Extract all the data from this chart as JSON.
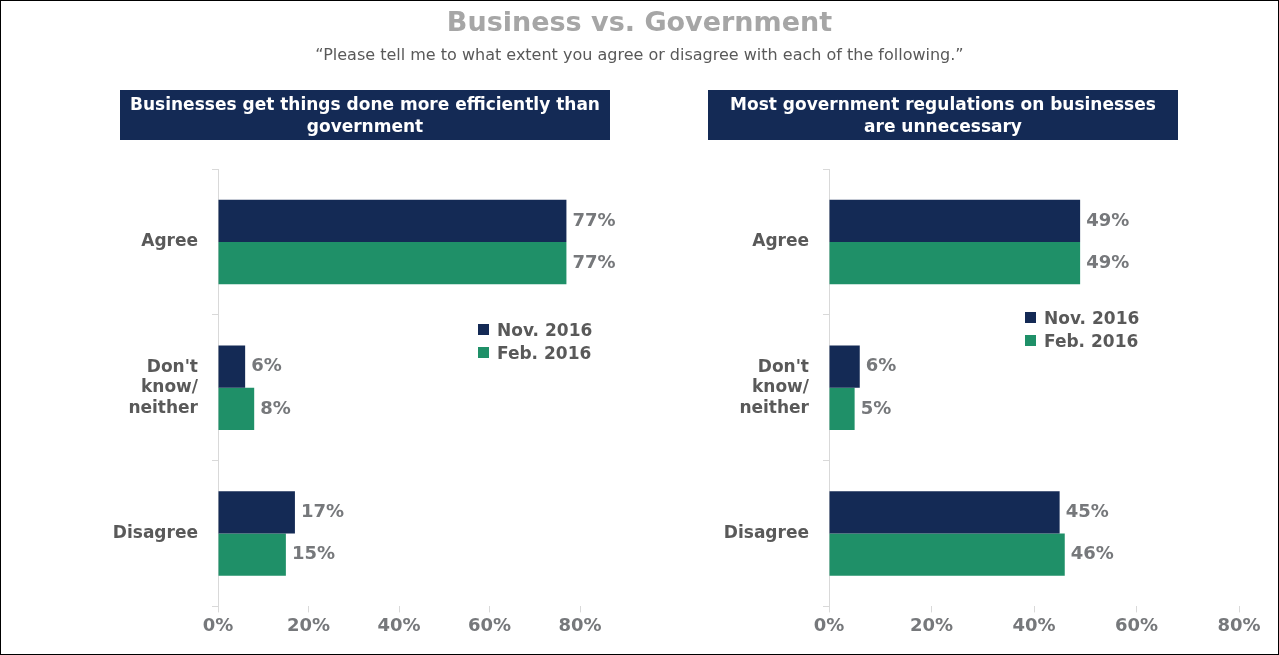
{
  "chart_data": [
    {
      "type": "bar",
      "orientation": "horizontal",
      "title": "Businesses get things done more efficiently than government",
      "annotations": [
        "Business vs. Government",
        "“Please tell me to what extent you agree or disagree with each of the following.”"
      ],
      "categories": [
        "Agree",
        "Don't know/ neither",
        "Disagree"
      ],
      "series": [
        {
          "name": "Nov. 2016",
          "color": "#142a55",
          "values": [
            77,
            6,
            17
          ],
          "value_labels": [
            "77%",
            "6%",
            "17%"
          ]
        },
        {
          "name": "Feb. 2016",
          "color": "#1f9068",
          "values": [
            77,
            8,
            15
          ],
          "value_labels": [
            "77%",
            "8%",
            "15%"
          ]
        }
      ],
      "xlim": [
        0,
        80
      ],
      "xticks": [
        {
          "value": 0,
          "label": "0%"
        },
        {
          "value": 20,
          "label": "20%"
        },
        {
          "value": 40,
          "label": "40%"
        },
        {
          "value": 60,
          "label": "60%"
        },
        {
          "value": 80,
          "label": "80%"
        }
      ],
      "legend": "right",
      "grid": false
    },
    {
      "type": "bar",
      "orientation": "horizontal",
      "title": "Most government regulations on businesses are unnecessary",
      "categories": [
        "Agree",
        "Don't know/ neither",
        "Disagree"
      ],
      "series": [
        {
          "name": "Nov. 2016",
          "color": "#142a55",
          "values": [
            49,
            6,
            45
          ],
          "value_labels": [
            "49%",
            "6%",
            "45%"
          ]
        },
        {
          "name": "Feb. 2016",
          "color": "#1f9068",
          "values": [
            49,
            5,
            46
          ],
          "value_labels": [
            "49%",
            "5%",
            "46%"
          ]
        }
      ],
      "xlim": [
        0,
        80
      ],
      "xticks": [
        {
          "value": 0,
          "label": "0%"
        },
        {
          "value": 20,
          "label": "20%"
        },
        {
          "value": 40,
          "label": "40%"
        },
        {
          "value": 60,
          "label": "60%"
        },
        {
          "value": 80,
          "label": "80%"
        }
      ],
      "legend": "right",
      "grid": false
    }
  ]
}
